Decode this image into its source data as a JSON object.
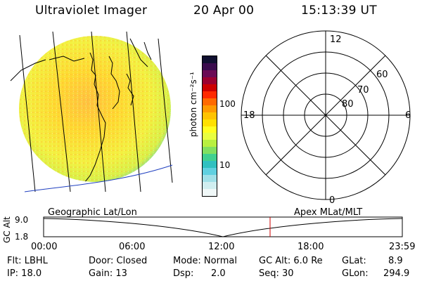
{
  "header": {
    "title": "Ultraviolet Imager",
    "date": "20 Apr 00",
    "time": "15:13:39 UT"
  },
  "colorbar": {
    "unit_label": "photon cm⁻²s⁻¹",
    "ticks": [
      "100",
      "10"
    ],
    "colors_top_to_bottom": [
      "#101030",
      "#3a0b4d",
      "#6a0a55",
      "#9b0030",
      "#cc0000",
      "#ff2a00",
      "#ff6a00",
      "#ff9a00",
      "#ffc300",
      "#ffe000",
      "#ffff20",
      "#e8ff40",
      "#b8f040",
      "#80e060",
      "#40d090",
      "#30c0c0",
      "#60d0e0",
      "#a0e0e8",
      "#d0eef0",
      "#f0f8f8"
    ]
  },
  "polar_plot": {
    "mlt_labels": [
      "12",
      "18",
      "6",
      "0"
    ],
    "lat_labels": [
      "60",
      "70",
      "80"
    ]
  },
  "timeline": {
    "left_label": "Geographic Lat/Lon",
    "right_label": "Apex MLat/MLT",
    "axis_title": "GC Alt",
    "y_ticks": [
      "9.0",
      "1.8"
    ],
    "x_ticks": [
      "00:00",
      "06:00",
      "12:00",
      "18:00",
      "23:59"
    ],
    "current_marker_time": "15:13"
  },
  "status": {
    "filter": "Flt: LBHL",
    "ip": "IP: 18.0",
    "door": "Door: Closed",
    "gain": "Gain: 13",
    "mode": "Mode: Normal",
    "dsp_label": "Dsp:",
    "dsp_value": "2.0",
    "gc_alt": "GC Alt: 6.0 Re",
    "seq": "Seq: 30",
    "glat_label": "GLat:",
    "glat_value": "8.9",
    "glon_label": "GLon:",
    "glon_value": "294.9"
  }
}
